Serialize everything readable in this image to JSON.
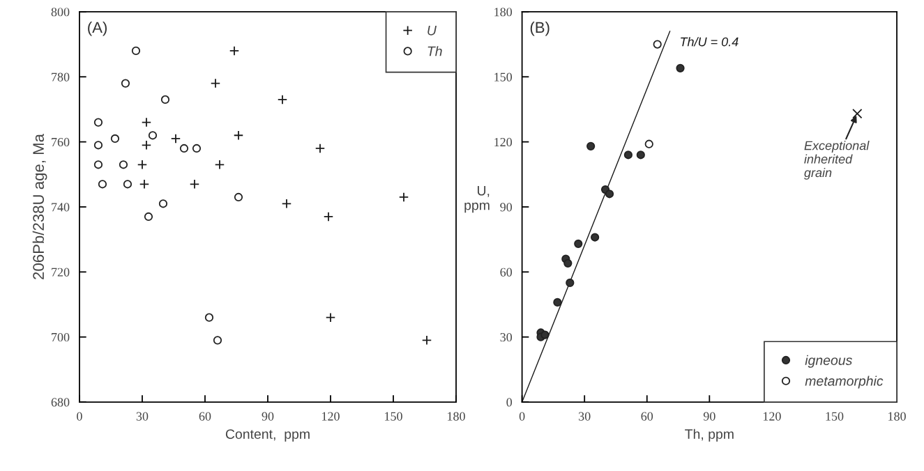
{
  "chart_data": [
    {
      "type": "scatter",
      "title": "(A)",
      "xlabel": "Content,  ppm",
      "ylabel": "206Pb/238U age, Ma",
      "xlim": [
        0,
        180
      ],
      "ylim": [
        680,
        800
      ],
      "xticks": [
        0,
        30,
        60,
        90,
        120,
        150,
        180
      ],
      "yticks": [
        680,
        700,
        720,
        740,
        760,
        780,
        800
      ],
      "grid": false,
      "legend": "top right",
      "series": [
        {
          "name": "U",
          "color": "#1a1a1a",
          "marker": "cross",
          "x": [
            74,
            65,
            32,
            76,
            46,
            32,
            30,
            67,
            31,
            55,
            97,
            115,
            99,
            155,
            119,
            120,
            166
          ],
          "values": [
            788,
            778,
            766,
            762,
            761,
            759,
            753,
            753,
            747,
            747,
            773,
            758,
            741,
            743,
            737,
            706,
            699
          ]
        },
        {
          "name": "Th",
          "color": "#ffffff",
          "marker": "circle",
          "x": [
            27,
            22,
            41,
            9,
            17,
            35,
            9,
            50,
            56,
            9,
            21,
            11,
            23,
            76,
            40,
            33,
            62,
            66
          ],
          "values": [
            788,
            778,
            773,
            766,
            761,
            762,
            759,
            758,
            758,
            753,
            753,
            747,
            747,
            743,
            741,
            737,
            706,
            699
          ]
        }
      ]
    },
    {
      "type": "scatter",
      "title": "(B)",
      "xlabel": "Th, ppm",
      "ylabel": "U,\nppm",
      "xlim": [
        0,
        180
      ],
      "ylim": [
        0,
        180
      ],
      "xticks": [
        0,
        30,
        60,
        90,
        120,
        150,
        180
      ],
      "yticks": [
        0,
        30,
        60,
        90,
        120,
        150,
        180
      ],
      "grid": false,
      "legend": "bottom right",
      "annotations": [
        {
          "text": "Exceptional\ninherited\ngrain",
          "x": 161,
          "y": 133
        }
      ],
      "series": [
        {
          "name": "Th/U = 0.4",
          "type": "line",
          "color": "#1a1a1a",
          "line_style": "solid",
          "marker": "none",
          "x": [
            0,
            71
          ],
          "values": [
            0,
            171
          ]
        },
        {
          "name": "igneous",
          "color": "#333333",
          "marker": "circle",
          "x": [
            76,
            33,
            51,
            57,
            40,
            42,
            35,
            27,
            21,
            22,
            23,
            17,
            9,
            9,
            11
          ],
          "values": [
            154,
            118,
            114,
            114,
            98,
            96,
            76,
            73,
            66,
            64,
            55,
            46,
            32,
            30,
            31
          ]
        },
        {
          "name": "metamorphic",
          "color": "#ffffff",
          "marker": "circle",
          "x": [
            65,
            61
          ],
          "values": [
            165,
            119
          ]
        },
        {
          "color": "#1a1a1a",
          "marker": "x",
          "x": [
            161
          ],
          "values": [
            133
          ]
        }
      ]
    }
  ]
}
